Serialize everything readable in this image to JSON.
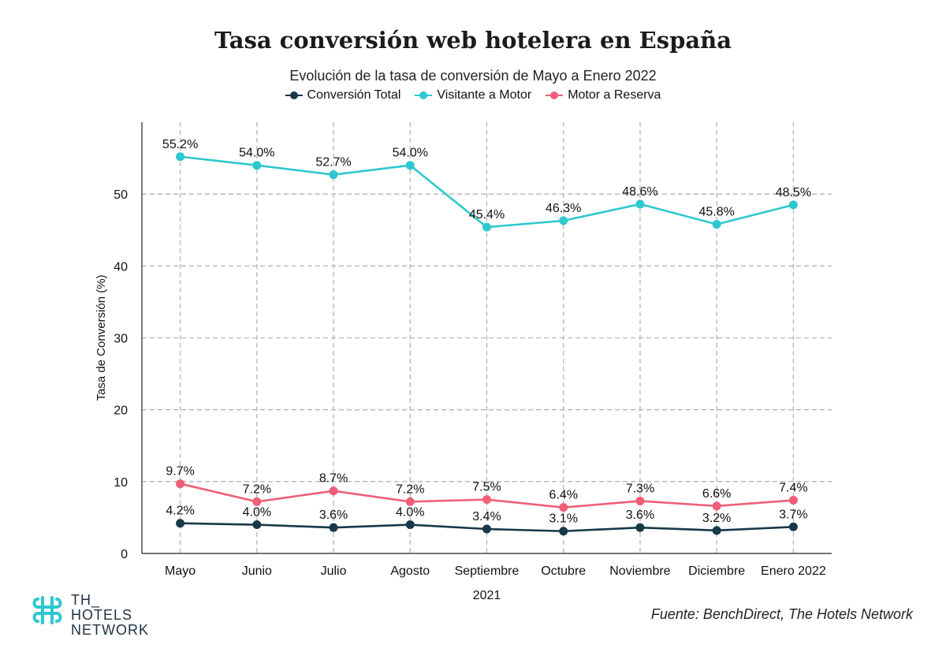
{
  "title": "Tasa conversión web hotelera en España",
  "subtitle": "Evolución de la tasa de conversión de Mayo a Enero 2022",
  "legend": [
    {
      "label": "Conversión Total",
      "color": "#17394a"
    },
    {
      "label": "Visitante a Motor",
      "color": "#2ec8cf"
    },
    {
      "label": "Motor a Reserva",
      "color": "#ef5f77"
    }
  ],
  "chart_data": {
    "type": "line",
    "title": "Tasa conversión web hotelera en España",
    "subtitle": "Evolución de la tasa de conversión de Mayo a Enero 2022",
    "xlabel": "2021",
    "ylabel": "Tasa de Conversión (%)",
    "categories": [
      "Mayo",
      "Junio",
      "Julio",
      "Agosto",
      "Septiembre",
      "Octubre",
      "Noviembre",
      "Diciembre",
      "Enero 2022"
    ],
    "ylim": [
      0,
      60
    ],
    "yticks": [
      0,
      10,
      20,
      30,
      40,
      50
    ],
    "grid": true,
    "legend_position": "top-center",
    "series": [
      {
        "name": "Conversión Total",
        "color": "#17394a",
        "values": [
          4.2,
          4.0,
          3.6,
          4.0,
          3.4,
          3.1,
          3.6,
          3.2,
          3.7
        ],
        "labels": [
          "4.2%",
          "4.0%",
          "3.6%",
          "4.0%",
          "3.4%",
          "3.1%",
          "3.6%",
          "3.2%",
          "3.7%"
        ]
      },
      {
        "name": "Visitante a Motor",
        "color": "#2ec8cf",
        "values": [
          55.2,
          54.0,
          52.7,
          54.0,
          45.4,
          46.3,
          48.6,
          45.8,
          48.5
        ],
        "labels": [
          "55.2%",
          "54.0%",
          "52.7%",
          "54.0%",
          "45.4%",
          "46.3%",
          "48.6%",
          "45.8%",
          "48.5%"
        ]
      },
      {
        "name": "Motor a Reserva",
        "color": "#ef5f77",
        "values": [
          9.7,
          7.2,
          8.7,
          7.2,
          7.5,
          6.4,
          7.3,
          6.6,
          7.4
        ],
        "labels": [
          "9.7%",
          "7.2%",
          "8.7%",
          "7.2%",
          "7.5%",
          "6.4%",
          "7.3%",
          "6.6%",
          "7.4%"
        ]
      }
    ]
  },
  "logo": {
    "line1": "TH_",
    "line2": "HOTELS",
    "line3": "NETWORK",
    "color": "#2ec8cf"
  },
  "source": "Fuente: BenchDirect, The Hotels Network"
}
